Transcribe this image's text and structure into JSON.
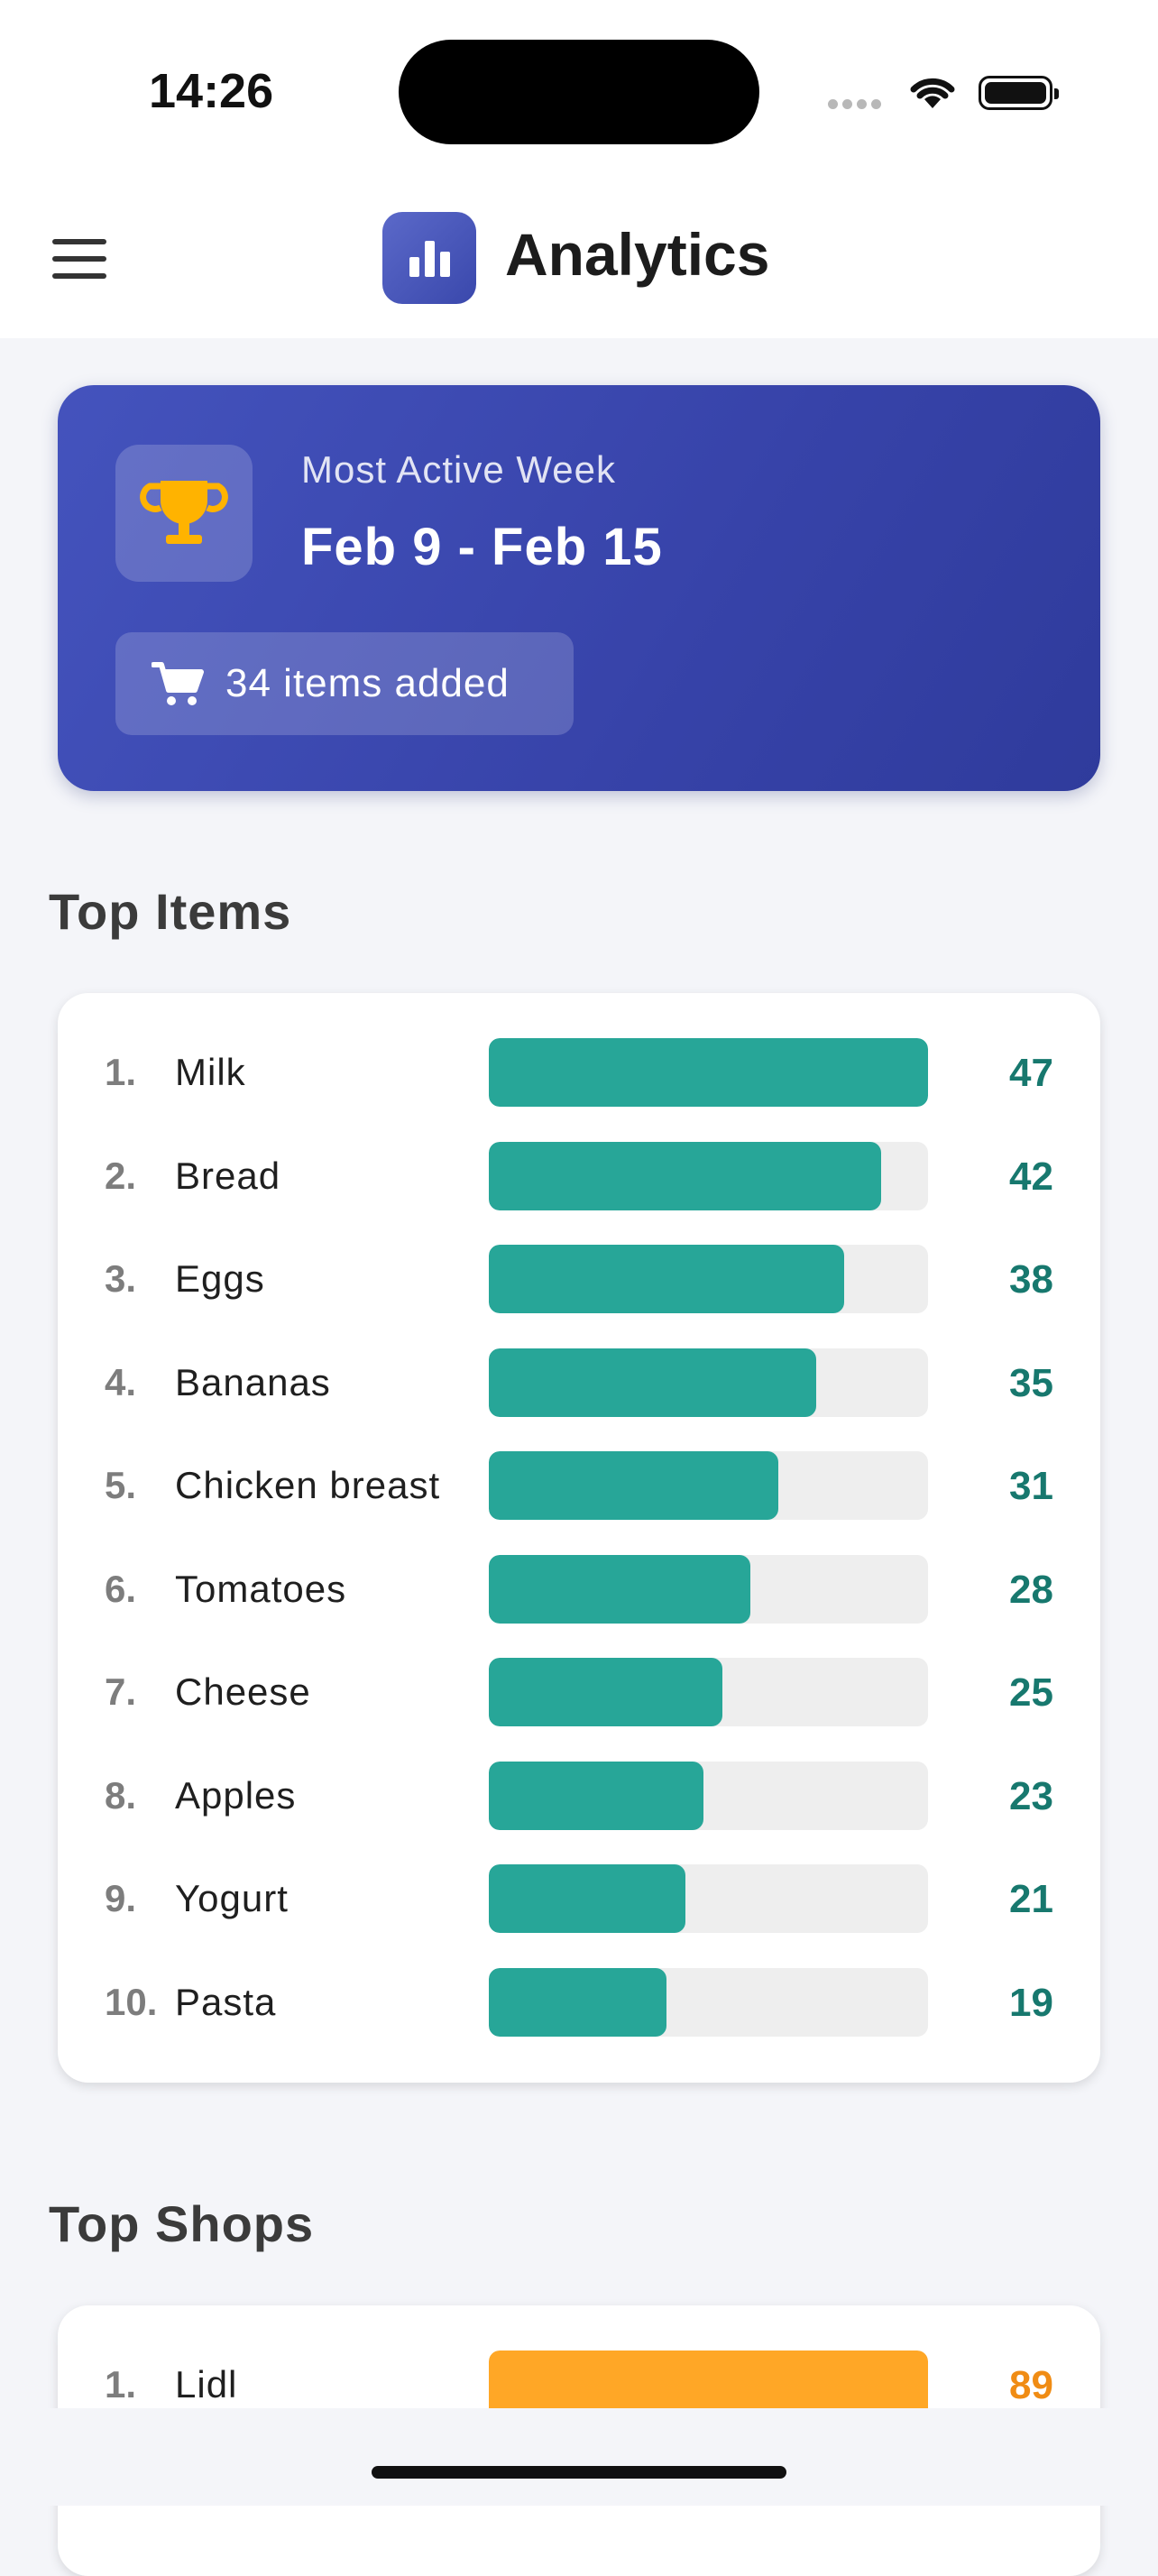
{
  "status_bar": {
    "time": "14:26"
  },
  "header": {
    "title": "Analytics",
    "logo_icon": "bar-chart-icon",
    "menu_icon": "hamburger-menu-icon"
  },
  "hero": {
    "label": "Most Active Week",
    "week": "Feb 9 - Feb 15",
    "items_added": "34 items added",
    "trophy_icon": "trophy-icon",
    "cart_icon": "cart-icon",
    "trophy_color": "#ffb300"
  },
  "top_items": {
    "title": "Top Items",
    "items": [
      {
        "rank": "1.",
        "name": "Milk",
        "count": "47"
      },
      {
        "rank": "2.",
        "name": "Bread",
        "count": "42"
      },
      {
        "rank": "3.",
        "name": "Eggs",
        "count": "38"
      },
      {
        "rank": "4.",
        "name": "Bananas",
        "count": "35"
      },
      {
        "rank": "5.",
        "name": "Chicken breast",
        "count": "31"
      },
      {
        "rank": "6.",
        "name": "Tomatoes",
        "count": "28"
      },
      {
        "rank": "7.",
        "name": "Cheese",
        "count": "25"
      },
      {
        "rank": "8.",
        "name": "Apples",
        "count": "23"
      },
      {
        "rank": "9.",
        "name": "Yogurt",
        "count": "21"
      },
      {
        "rank": "10.",
        "name": "Pasta",
        "count": "19"
      }
    ]
  },
  "top_shops": {
    "title": "Top Shops",
    "items": [
      {
        "rank": "1.",
        "name": "Lidl",
        "count": "89"
      }
    ]
  },
  "colors": {
    "accent": "#3f4db5",
    "item_bar": "#27a698",
    "shop_bar": "#ffa726"
  }
}
